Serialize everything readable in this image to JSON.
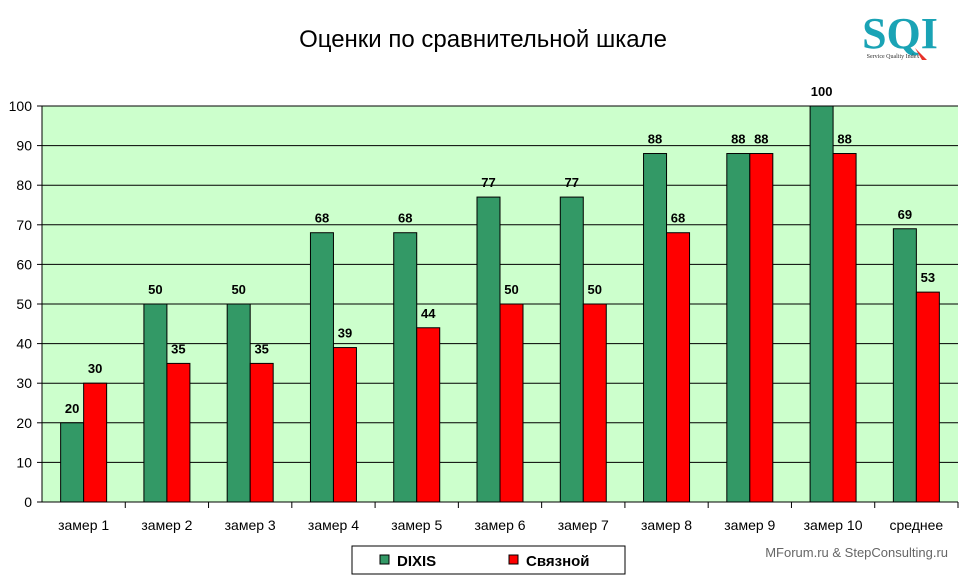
{
  "chart_data": {
    "type": "bar",
    "title": "Оценки по сравнительной шкале",
    "xlabel": "",
    "ylabel": "",
    "ylim": [
      0,
      100
    ],
    "yticks": [
      0,
      10,
      20,
      30,
      40,
      50,
      60,
      70,
      80,
      90,
      100
    ],
    "grid": true,
    "legend_position": "bottom",
    "categories": [
      "замер 1",
      "замер 2",
      "замер 3",
      "замер 4",
      "замер 5",
      "замер 6",
      "замер 7",
      "замер 8",
      "замер 9",
      "замер 10",
      "среднее"
    ],
    "series": [
      {
        "name": "DIXIS",
        "color": "#339966",
        "values": [
          20,
          50,
          50,
          68,
          68,
          77,
          77,
          88,
          88,
          100,
          69
        ]
      },
      {
        "name": "Связной",
        "color": "#ff0000",
        "values": [
          30,
          35,
          35,
          39,
          44,
          50,
          50,
          68,
          88,
          88,
          53
        ]
      }
    ],
    "plot_background": "#ccffcc"
  },
  "logo": {
    "text": "SQI",
    "subtitle": "Service Quality Index"
  },
  "credit": "MForum.ru & StepConsulting.ru"
}
